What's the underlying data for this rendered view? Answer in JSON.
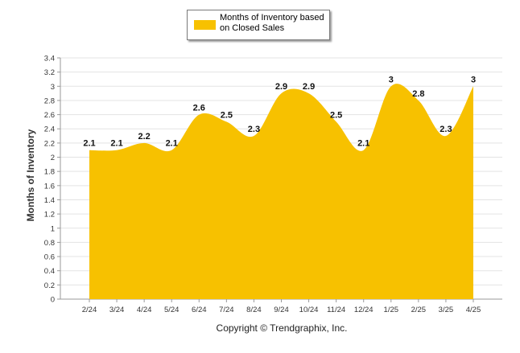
{
  "legend": {
    "label": "Months of Inventory based on Closed Sales",
    "color": "#F7C100"
  },
  "footer": {
    "copyright": "Copyright © Trendgraphix, Inc."
  },
  "chart_data": {
    "type": "area",
    "title": "",
    "xlabel": "",
    "ylabel": "Months of Inventory",
    "ylim": [
      0,
      3.4
    ],
    "y_ticks": [
      {
        "value": 0,
        "label": "0"
      },
      {
        "value": 0.2,
        "label": "0.2"
      },
      {
        "value": 0.4,
        "label": "0.4"
      },
      {
        "value": 0.6,
        "label": "0.6"
      },
      {
        "value": 0.8,
        "label": "0.8"
      },
      {
        "value": 1.0,
        "label": "1"
      },
      {
        "value": 1.2,
        "label": "1.2"
      },
      {
        "value": 1.4,
        "label": "1.4"
      },
      {
        "value": 1.6,
        "label": "1.6"
      },
      {
        "value": 1.8,
        "label": "1.8"
      },
      {
        "value": 2.0,
        "label": "2"
      },
      {
        "value": 2.2,
        "label": "2.2"
      },
      {
        "value": 2.4,
        "label": "2.4"
      },
      {
        "value": 2.6,
        "label": "2.6"
      },
      {
        "value": 2.8,
        "label": "2.8"
      },
      {
        "value": 3.0,
        "label": "3"
      },
      {
        "value": 3.2,
        "label": "3.2"
      },
      {
        "value": 3.4,
        "label": "3.4"
      }
    ],
    "grid": true,
    "categories": [
      "2/24",
      "3/24",
      "4/24",
      "5/24",
      "6/24",
      "7/24",
      "8/24",
      "9/24",
      "10/24",
      "11/24",
      "12/24",
      "1/25",
      "2/25",
      "3/25",
      "4/25"
    ],
    "series": [
      {
        "name": "Months of Inventory based on Closed Sales",
        "color": "#F7C100",
        "values": [
          2.1,
          2.1,
          2.2,
          2.1,
          2.6,
          2.5,
          2.3,
          2.9,
          2.9,
          2.5,
          2.1,
          3,
          2.8,
          2.3,
          3
        ],
        "data_labels": [
          "2.1",
          "2.1",
          "2.2",
          "2.1",
          "2.6",
          "2.5",
          "2.3",
          "2.9",
          "2.9",
          "2.5",
          "2.1",
          "3",
          "2.8",
          "2.3",
          "3"
        ]
      }
    ]
  }
}
